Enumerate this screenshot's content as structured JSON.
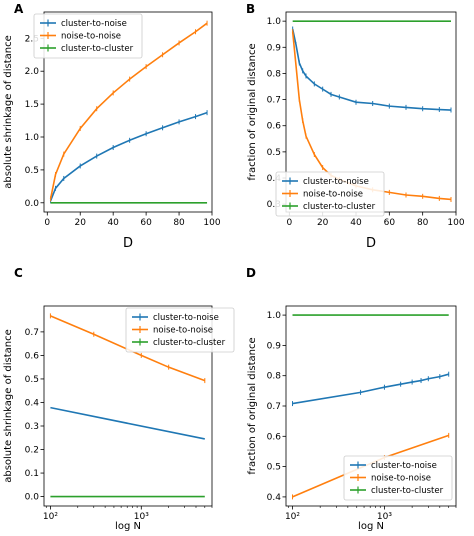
{
  "panel_letters": [
    "A",
    "B",
    "C",
    "D"
  ],
  "chart_data": [
    {
      "panel": "A",
      "type": "line",
      "xlabel": "D",
      "ylabel": "absolute shrinkage of distance",
      "xlim": [
        -2,
        100
      ],
      "ylim": [
        -0.14,
        2.9
      ],
      "xticks": [
        0,
        20,
        40,
        60,
        80,
        100
      ],
      "yticks": [
        0.0,
        0.5,
        1.0,
        1.5,
        2.0,
        2.5
      ],
      "xtick_labels": [
        "0",
        "20",
        "40",
        "60",
        "80",
        "100"
      ],
      "ytick_labels": [
        "0.0",
        "0.5",
        "1.0",
        "1.5",
        "2.0",
        "2.5"
      ],
      "legend_position": "top-left",
      "grid": false,
      "series": [
        {
          "name": "cluster-to-noise",
          "color": "#1f77b4",
          "x": [
            2,
            5,
            10,
            20,
            30,
            40,
            50,
            60,
            70,
            80,
            90,
            97
          ],
          "y": [
            0.03,
            0.22,
            0.37,
            0.56,
            0.71,
            0.84,
            0.95,
            1.05,
            1.14,
            1.23,
            1.31,
            1.37
          ]
        },
        {
          "name": "noise-to-noise",
          "color": "#ff7f0e",
          "x": [
            2,
            5,
            10,
            20,
            30,
            40,
            50,
            60,
            70,
            80,
            90,
            97
          ],
          "y": [
            0.06,
            0.43,
            0.74,
            1.13,
            1.43,
            1.67,
            1.88,
            2.07,
            2.25,
            2.43,
            2.6,
            2.73
          ]
        },
        {
          "name": "cluster-to-cluster",
          "color": "#2ca02c",
          "x": [
            2,
            97
          ],
          "y": [
            0.0,
            0.0
          ]
        }
      ]
    },
    {
      "panel": "B",
      "type": "line",
      "xlabel": "D",
      "ylabel": "fraction of original distance",
      "xlim": [
        -2,
        100
      ],
      "ylim": [
        0.27,
        1.035
      ],
      "xticks": [
        0,
        20,
        40,
        60,
        80,
        100
      ],
      "yticks": [
        0.3,
        0.4,
        0.5,
        0.6,
        0.7,
        0.8,
        0.9,
        1.0
      ],
      "xtick_labels": [
        "0",
        "20",
        "40",
        "60",
        "80",
        "100"
      ],
      "ytick_labels": [
        "0.3",
        "0.4",
        "0.5",
        "0.6",
        "0.7",
        "0.8",
        "0.9",
        "1.0"
      ],
      "legend_position": "lower-left",
      "grid": false,
      "series": [
        {
          "name": "cluster-to-noise",
          "color": "#1f77b4",
          "x": [
            2,
            4,
            6,
            8,
            10,
            15,
            20,
            25,
            30,
            40,
            50,
            60,
            70,
            80,
            90,
            97
          ],
          "y": [
            0.97,
            0.91,
            0.84,
            0.81,
            0.79,
            0.76,
            0.74,
            0.72,
            0.71,
            0.69,
            0.685,
            0.675,
            0.67,
            0.665,
            0.662,
            0.66
          ]
        },
        {
          "name": "noise-to-noise",
          "color": "#ff7f0e",
          "x": [
            2,
            4,
            6,
            8,
            10,
            15,
            20,
            25,
            30,
            40,
            50,
            60,
            70,
            80,
            90,
            97
          ],
          "y": [
            0.96,
            0.83,
            0.7,
            0.62,
            0.56,
            0.49,
            0.44,
            0.41,
            0.395,
            0.37,
            0.355,
            0.345,
            0.335,
            0.33,
            0.322,
            0.318
          ]
        },
        {
          "name": "cluster-to-cluster",
          "color": "#2ca02c",
          "x": [
            2,
            97
          ],
          "y": [
            1.0,
            1.0
          ]
        }
      ]
    },
    {
      "panel": "C",
      "type": "line",
      "xscale": "log",
      "xlabel": "log N",
      "ylabel": "absolute shrinkage of distance",
      "xlim": [
        85,
        6000
      ],
      "ylim": [
        -0.04,
        0.81
      ],
      "xticks": [
        100,
        1000
      ],
      "xtick_labels": [
        "10²",
        "10³"
      ],
      "yticks": [
        0.0,
        0.1,
        0.2,
        0.3,
        0.4,
        0.5,
        0.6,
        0.7
      ],
      "ytick_labels": [
        "0.0",
        "0.1",
        "0.2",
        "0.3",
        "0.4",
        "0.5",
        "0.6",
        "0.7"
      ],
      "legend_position": "top-right",
      "grid": false,
      "series": [
        {
          "name": "cluster-to-noise",
          "color": "#1f77b4",
          "x": [
            100,
            5000
          ],
          "y": [
            0.378,
            0.245
          ]
        },
        {
          "name": "noise-to-noise",
          "color": "#ff7f0e",
          "x": [
            100,
            300,
            1000,
            2000,
            5000
          ],
          "y": [
            0.768,
            0.69,
            0.6,
            0.55,
            0.493
          ]
        },
        {
          "name": "cluster-to-cluster",
          "color": "#2ca02c",
          "x": [
            100,
            5000
          ],
          "y": [
            0.0,
            0.0
          ]
        }
      ]
    },
    {
      "panel": "D",
      "type": "line",
      "xscale": "log",
      "xlabel": "log N",
      "ylabel": "fraction of original distance",
      "xlim": [
        85,
        6000
      ],
      "ylim": [
        0.37,
        1.03
      ],
      "xticks": [
        100,
        1000
      ],
      "xtick_labels": [
        "10²",
        "10³"
      ],
      "yticks": [
        0.4,
        0.5,
        0.6,
        0.7,
        0.8,
        0.9,
        1.0
      ],
      "ytick_labels": [
        "0.4",
        "0.5",
        "0.6",
        "0.7",
        "0.8",
        "0.9",
        "1.0"
      ],
      "legend_position": "lower-right",
      "grid": false,
      "series": [
        {
          "name": "cluster-to-noise",
          "color": "#1f77b4",
          "x": [
            100,
            550,
            1000,
            1500,
            2000,
            2500,
            3000,
            4000,
            5000
          ],
          "y": [
            0.708,
            0.745,
            0.762,
            0.772,
            0.779,
            0.784,
            0.79,
            0.797,
            0.805
          ]
        },
        {
          "name": "noise-to-noise",
          "color": "#ff7f0e",
          "x": [
            100,
            1000,
            5000
          ],
          "y": [
            0.4,
            0.53,
            0.603
          ]
        },
        {
          "name": "cluster-to-cluster",
          "color": "#2ca02c",
          "x": [
            100,
            5000
          ],
          "y": [
            1.0,
            1.0
          ]
        }
      ]
    }
  ]
}
